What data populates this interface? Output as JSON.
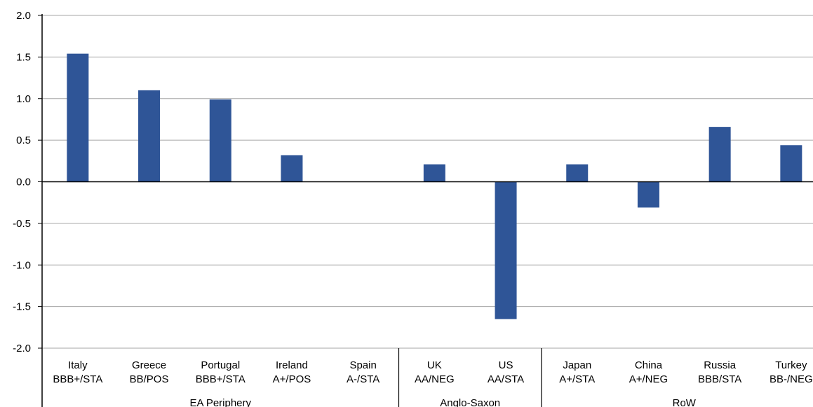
{
  "chart_data": {
    "type": "bar",
    "title": "",
    "xlabel": "",
    "ylabel": "",
    "ylim": [
      -2.0,
      2.0
    ],
    "yticks": [
      "2.0",
      "1.5",
      "1.0",
      "0.5",
      "0.0",
      "-0.5",
      "-1.0",
      "-1.5",
      "-2.0"
    ],
    "grid": true,
    "colors": {
      "bar": "#2F5597",
      "grid": "#a6a6a6",
      "axis": "#000000"
    },
    "categories": [
      {
        "name": "Italy",
        "rating": "BBB+/STA"
      },
      {
        "name": "Greece",
        "rating": "BB/POS"
      },
      {
        "name": "Portugal",
        "rating": "BBB+/STA"
      },
      {
        "name": "Ireland",
        "rating": "A+/POS"
      },
      {
        "name": "Spain",
        "rating": "A-/STA"
      },
      {
        "name": "UK",
        "rating": "AA/NEG"
      },
      {
        "name": "US",
        "rating": "AA/STA"
      },
      {
        "name": "Japan",
        "rating": "A+/STA"
      },
      {
        "name": "China",
        "rating": "A+/NEG"
      },
      {
        "name": "Russia",
        "rating": "BBB/STA"
      },
      {
        "name": "Turkey",
        "rating": "BB-/NEG"
      }
    ],
    "values": [
      1.54,
      1.1,
      0.99,
      0.32,
      0.0,
      0.21,
      -1.65,
      0.21,
      -0.31,
      0.66,
      0.44
    ],
    "groups": [
      {
        "label": "EA Periphery",
        "count": 5
      },
      {
        "label": "Anglo-Saxon",
        "count": 2
      },
      {
        "label": "RoW",
        "count": 4
      }
    ]
  }
}
